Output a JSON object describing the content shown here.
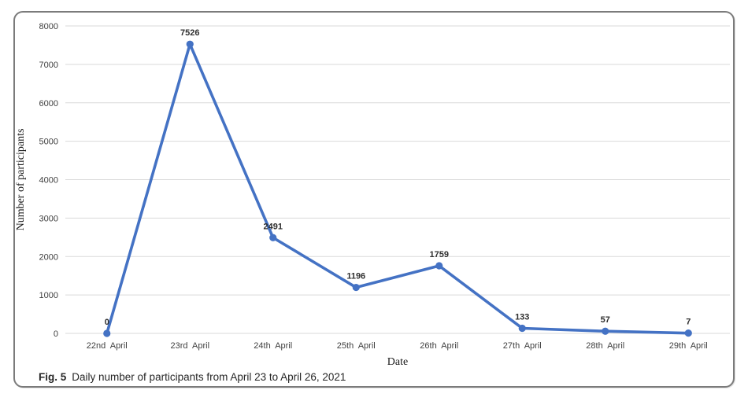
{
  "figure": {
    "caption_label": "Fig. 5",
    "caption_text": "Daily number of participants from April 23 to April 26, 2021"
  },
  "chart_data": {
    "type": "line",
    "title": "",
    "categories": [
      "22nd  April",
      "23rd  April",
      "24th  April",
      "25th  April",
      "26th  April",
      "27th  April",
      "28th  April",
      "29th  April"
    ],
    "values": [
      0,
      7526,
      2491,
      1196,
      1759,
      133,
      57,
      7
    ],
    "xlabel": "Date",
    "ylabel": "Number of participants",
    "ylim": [
      0,
      8000
    ],
    "ytick_step": 1000,
    "grid": true,
    "legend": "none",
    "line_color": "#4472C4",
    "marker_color": "#4472C4",
    "grid_color": "#D9D9D9",
    "tick_text_color": "#3f3f3f"
  }
}
